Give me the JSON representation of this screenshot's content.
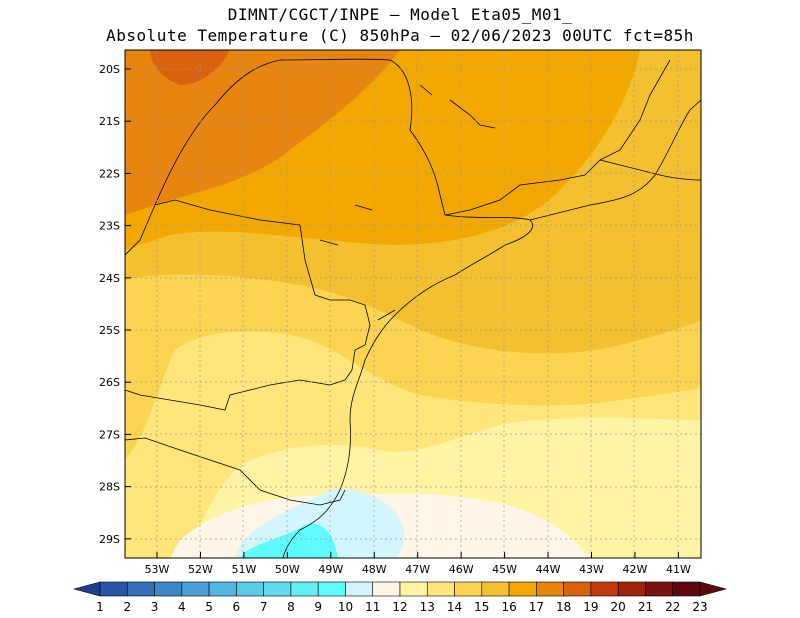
{
  "title": {
    "line1": "DIMNT/CGCT/INPE –  Model Eta05_M01_",
    "line2": "Absolute Temperature (C) 850hPa –  02/06/2023 00UTC fct=85h"
  },
  "map": {
    "lat_labels": [
      "20S",
      "21S",
      "22S",
      "23S",
      "24S",
      "25S",
      "26S",
      "27S",
      "28S",
      "29S"
    ],
    "lon_labels": [
      "53W",
      "52W",
      "51W",
      "50W",
      "49W",
      "48W",
      "47W",
      "46W",
      "45W",
      "44W",
      "43W",
      "42W",
      "41W"
    ],
    "lat_range": [
      -29.5,
      -19.8
    ],
    "lon_range": [
      -53.8,
      -40.5
    ]
  },
  "colorbar": {
    "labels": [
      "1",
      "2",
      "3",
      "4",
      "5",
      "6",
      "7",
      "8",
      "9",
      "10",
      "11",
      "12",
      "13",
      "14",
      "15",
      "16",
      "17",
      "18",
      "19",
      "20",
      "21",
      "22",
      "23"
    ],
    "colors": [
      "#1f3e8c",
      "#2a55a6",
      "#3570b8",
      "#3f88c8",
      "#4aa0d6",
      "#52b6e0",
      "#5acbe9",
      "#5fdcef",
      "#62eef6",
      "#5ffcff",
      "#d2f6fb",
      "#fff6e8",
      "#fff4a4",
      "#ffe57a",
      "#fbd452",
      "#f5c030",
      "#f2a800",
      "#e88511",
      "#d8620d",
      "#c33c09",
      "#9e230d",
      "#7d130f",
      "#5e080e"
    ]
  }
}
